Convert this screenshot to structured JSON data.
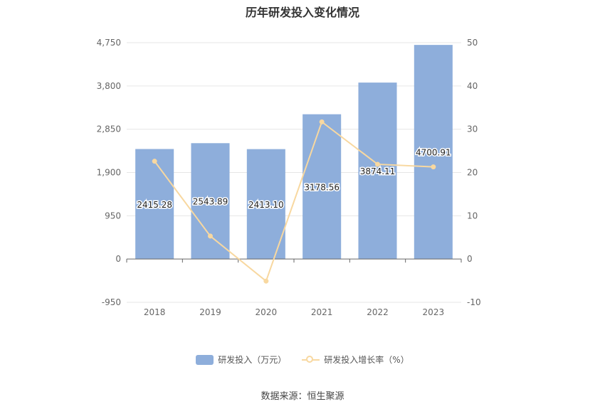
{
  "chart_data": {
    "type": "bar",
    "title": "历年研发投入变化情况",
    "categories": [
      "2018",
      "2019",
      "2020",
      "2021",
      "2022",
      "2023"
    ],
    "series": [
      {
        "name": "研发投入（万元）",
        "type": "bar",
        "axis": "left",
        "color": "#8eaedb",
        "values": [
          2415.28,
          2543.89,
          2413.1,
          3178.56,
          3874.11,
          4700.91
        ],
        "labels": [
          "2415.28",
          "2543.89",
          "2413.10",
          "3178.56",
          "3874.11",
          "4700.91"
        ]
      },
      {
        "name": "研发投入增长率（%）",
        "type": "line",
        "axis": "right",
        "color": "#f8d8a0",
        "values": [
          22.6,
          5.3,
          -5.1,
          31.7,
          21.9,
          21.3
        ]
      }
    ],
    "left_axis": {
      "ylim": [
        -950,
        4750
      ],
      "ticks": [
        "4,750",
        "3,800",
        "2,850",
        "1,900",
        "950",
        "0",
        "-950"
      ],
      "tick_values": [
        4750,
        3800,
        2850,
        1900,
        950,
        0,
        -950
      ]
    },
    "right_axis": {
      "ylim": [
        -10,
        50
      ],
      "ticks": [
        "50",
        "40",
        "30",
        "20",
        "10",
        "0",
        "-10"
      ],
      "tick_values": [
        50,
        40,
        30,
        20,
        10,
        0,
        -10
      ]
    },
    "grid": true,
    "legend_position": "bottom"
  },
  "source": "数据来源：恒生聚源"
}
